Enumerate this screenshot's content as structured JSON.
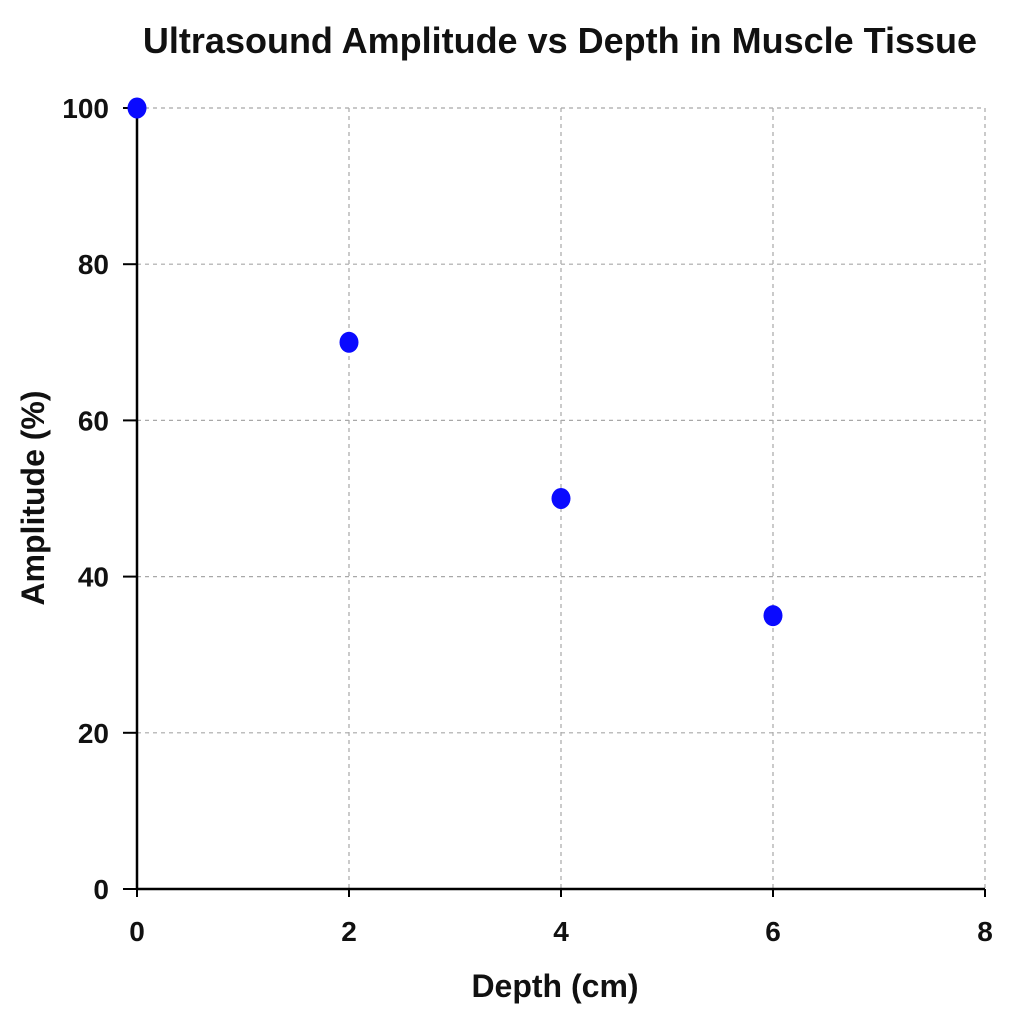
{
  "chart_data": {
    "type": "scatter",
    "title": "Ultrasound Amplitude vs Depth in Muscle Tissue",
    "xlabel": "Depth (cm)",
    "ylabel": "Amplitude (%)",
    "xlim": [
      0,
      8
    ],
    "ylim": [
      0,
      100
    ],
    "xticks": [
      "0",
      "2",
      "4",
      "6",
      "8"
    ],
    "yticks": [
      "0",
      "20",
      "40",
      "60",
      "80",
      "100"
    ],
    "grid": true,
    "series": [
      {
        "color": "#0a0aff",
        "x": [
          0,
          2,
          4,
          6
        ],
        "y": [
          100,
          70,
          50,
          35
        ]
      }
    ]
  }
}
